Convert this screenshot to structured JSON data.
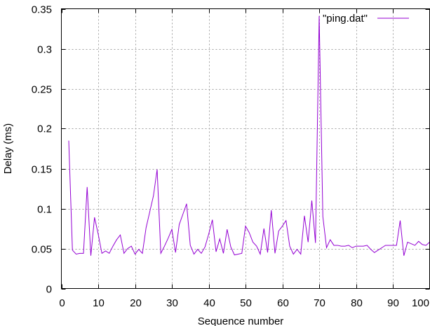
{
  "chart_data": {
    "type": "line",
    "title": "",
    "xlabel": "Sequence number",
    "ylabel": "Delay (ms)",
    "xlim": [
      0,
      100
    ],
    "ylim": [
      0,
      0.35
    ],
    "x_ticks": [
      0,
      10,
      20,
      30,
      40,
      50,
      60,
      70,
      80,
      90,
      100
    ],
    "y_ticks": [
      0,
      0.05,
      0.1,
      0.15,
      0.2,
      0.25,
      0.3,
      0.35
    ],
    "x_tick_labels": [
      "0",
      "10",
      "20",
      "30",
      "40",
      "50",
      "60",
      "70",
      "80",
      "90",
      "100"
    ],
    "y_tick_labels": [
      "0",
      "0.05",
      "0.1",
      "0.15",
      "0.2",
      "0.25",
      "0.3",
      "0.35"
    ],
    "grid": true,
    "legend_position": "top-right",
    "series": [
      {
        "name": "\"ping.dat\"",
        "color": "#9400d3",
        "x": [
          2,
          3,
          4,
          5,
          6,
          7,
          8,
          9,
          10,
          11,
          12,
          13,
          14,
          15,
          16,
          17,
          18,
          19,
          20,
          21,
          22,
          23,
          24,
          25,
          26,
          27,
          28,
          29,
          30,
          31,
          32,
          33,
          34,
          35,
          36,
          37,
          38,
          39,
          40,
          41,
          42,
          43,
          44,
          45,
          46,
          47,
          48,
          49,
          50,
          51,
          52,
          53,
          54,
          55,
          56,
          57,
          58,
          59,
          60,
          61,
          62,
          63,
          64,
          65,
          66,
          67,
          68,
          69,
          70,
          71,
          72,
          73,
          74,
          75,
          76,
          77,
          78,
          79,
          80,
          81,
          82,
          83,
          84,
          85,
          86,
          87,
          88,
          89,
          90,
          91,
          92,
          93,
          94,
          95,
          96,
          97,
          98,
          99,
          100
        ],
        "y": [
          0.185,
          0.048,
          0.043,
          0.044,
          0.044,
          0.127,
          0.041,
          0.089,
          0.068,
          0.044,
          0.047,
          0.044,
          0.053,
          0.061,
          0.067,
          0.044,
          0.05,
          0.053,
          0.043,
          0.049,
          0.044,
          0.076,
          0.096,
          0.116,
          0.149,
          0.044,
          0.053,
          0.063,
          0.074,
          0.045,
          0.08,
          0.093,
          0.106,
          0.054,
          0.043,
          0.049,
          0.044,
          0.052,
          0.068,
          0.086,
          0.046,
          0.062,
          0.044,
          0.074,
          0.052,
          0.042,
          0.043,
          0.044,
          0.078,
          0.07,
          0.058,
          0.053,
          0.043,
          0.075,
          0.045,
          0.098,
          0.044,
          0.072,
          0.078,
          0.085,
          0.053,
          0.043,
          0.049,
          0.043,
          0.091,
          0.058,
          0.11,
          0.057,
          0.341,
          0.09,
          0.051,
          0.061,
          0.054,
          0.054,
          0.053,
          0.053,
          0.054,
          0.051,
          0.053,
          0.053,
          0.053,
          0.054,
          0.049,
          0.045,
          0.048,
          0.051,
          0.054,
          0.054,
          0.054,
          0.054,
          0.085,
          0.041,
          0.058,
          0.056,
          0.054,
          0.059,
          0.055,
          0.054,
          0.058
        ]
      }
    ]
  }
}
